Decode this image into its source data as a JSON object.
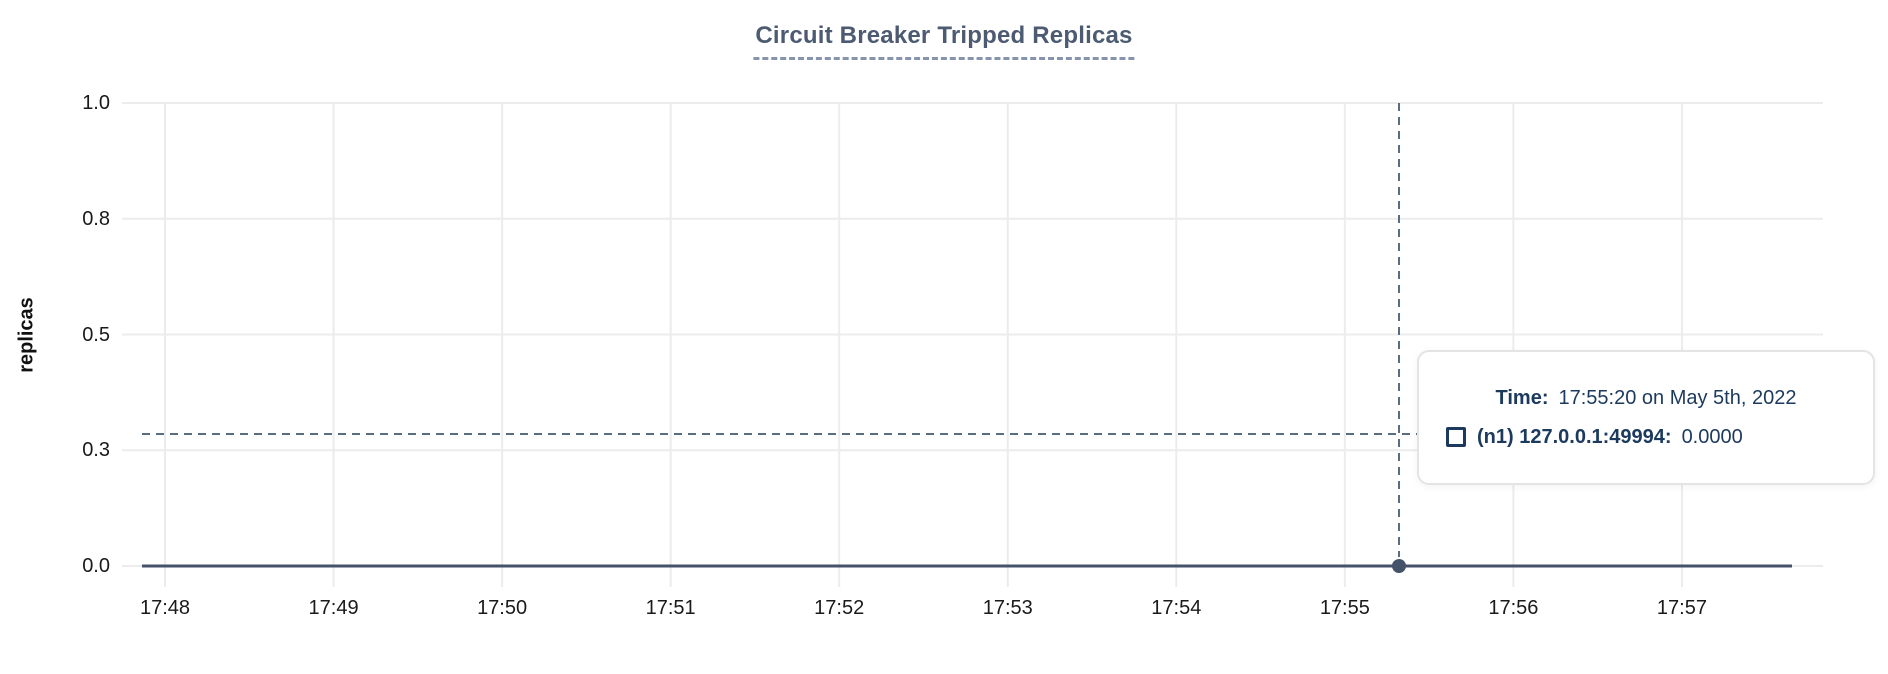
{
  "colors": {
    "title": "#4d5b72",
    "underline": "#8694ad",
    "grid": "#ececec",
    "line": "#44536a",
    "crosshair": "#5a6e82",
    "tooltip-text": "#1c3a5e",
    "tooltip-border": "#e4e4e4"
  },
  "chart_data": {
    "type": "line",
    "title": "Circuit Breaker Tripped Replicas",
    "xlabel": "",
    "ylabel": "replicas",
    "ylim": [
      0,
      1
    ],
    "grid": true,
    "y_tick_labels": [
      "1.0",
      "0.8",
      "0.5",
      "0.3",
      "0.0"
    ],
    "y_tick_values": [
      1.0,
      0.75,
      0.5,
      0.25,
      0.0
    ],
    "x_tick_labels": [
      "17:48",
      "17:49",
      "17:50",
      "17:51",
      "17:52",
      "17:53",
      "17:54",
      "17:55",
      "17:56",
      "17:57"
    ],
    "series": [
      {
        "name": "(n1) 127.0.0.1:49994",
        "color": "#44536a",
        "points": [
          {
            "x": "17:47:50",
            "y": 0
          },
          {
            "x": "17:57:40",
            "y": 0
          }
        ]
      }
    ],
    "selected_point": {
      "x": "17:55:20",
      "y": 0.0,
      "series": "(n1) 127.0.0.1:49994"
    },
    "legend_position": "tooltip-only"
  },
  "tooltip": {
    "time_label": "Time:",
    "time_value": "17:55:20 on May 5th, 2022",
    "series_label": "(n1) 127.0.0.1:49994:",
    "series_value": "0.0000"
  }
}
